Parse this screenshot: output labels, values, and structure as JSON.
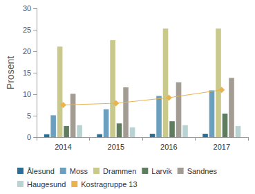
{
  "chart_data": {
    "type": "bar",
    "y_label": "Prosent",
    "categories": [
      "2014",
      "2015",
      "2016",
      "2017"
    ],
    "ylim": [
      0,
      30
    ],
    "yticks": [
      0,
      5,
      10,
      15,
      20,
      25,
      30
    ],
    "grid": false,
    "legend": "bottom",
    "series": [
      {
        "name": "Ålesund",
        "color": "#2b6f96",
        "values": [
          0.7,
          0.7,
          0.8,
          0.8
        ]
      },
      {
        "name": "Moss",
        "color": "#6a9fbf",
        "values": [
          5.1,
          6.5,
          9.6,
          10.9
        ]
      },
      {
        "name": "Drammen",
        "color": "#c9c98c",
        "values": [
          21.1,
          22.6,
          25.3,
          25.3
        ]
      },
      {
        "name": "Larvik",
        "color": "#5f7c5f",
        "values": [
          2.6,
          3.2,
          3.7,
          5.5
        ]
      },
      {
        "name": "Sandnes",
        "color": "#a39c92",
        "values": [
          10.1,
          11.6,
          12.8,
          13.8
        ]
      },
      {
        "name": "Haugesund",
        "color": "#b9d3d3",
        "values": [
          2.8,
          2.3,
          2.8,
          2.6
        ]
      },
      {
        "name": "Kostragruppe 13",
        "color": "#e9b350",
        "type": "line",
        "marker": "diamond",
        "values": [
          7.5,
          7.9,
          9.2,
          11.0
        ]
      }
    ]
  }
}
